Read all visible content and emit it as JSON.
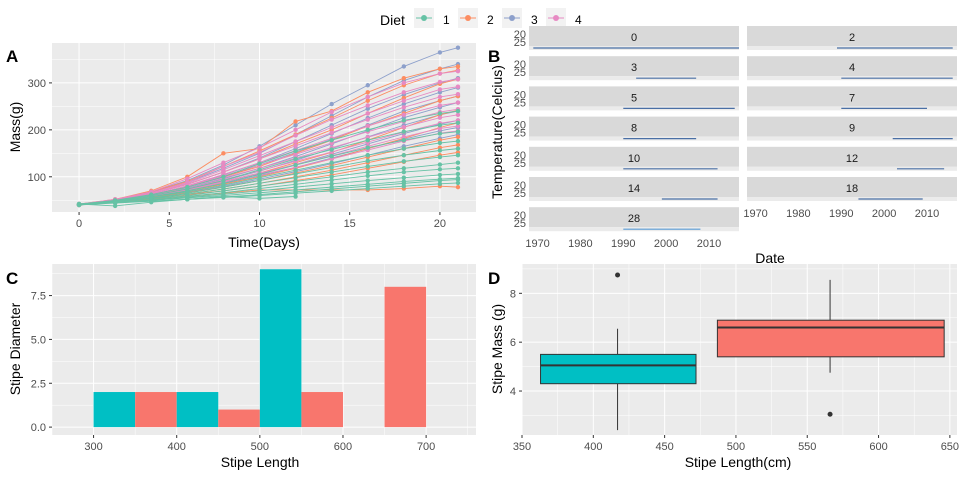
{
  "legend": {
    "title": "Diet",
    "items": [
      {
        "label": "1",
        "color": "#66C2A5"
      },
      {
        "label": "2",
        "color": "#FC8D62"
      },
      {
        "label": "3",
        "color": "#8DA0CB"
      },
      {
        "label": "4",
        "color": "#E78AC3"
      }
    ]
  },
  "colors": {
    "panel_bg": "#EBEBEB",
    "grid": "#FFFFFF",
    "strip_bg": "#D9D9D9",
    "teal": "#00BFC4",
    "salmon": "#F8766D",
    "facet_line": "#4A6FA5"
  },
  "chart_data": [
    {
      "panel": "A",
      "type": "line",
      "xlabel": "Time(Days)",
      "ylabel": "Mass(g)",
      "xlim": [
        -1.5,
        22
      ],
      "ylim": [
        25,
        385
      ],
      "xticks": [
        0,
        5,
        10,
        15,
        20
      ],
      "yticks": [
        100,
        200,
        300
      ],
      "x": [
        0,
        2,
        4,
        6,
        8,
        10,
        12,
        14,
        16,
        18,
        20,
        21
      ],
      "series": [
        {
          "diet": "3",
          "values": [
            40,
            50,
            68,
            92,
            125,
            165,
            210,
            255,
            295,
            335,
            365,
            375
          ]
        },
        {
          "diet": "3",
          "values": [
            41,
            51,
            67,
            88,
            118,
            150,
            190,
            230,
            270,
            305,
            330,
            340
          ]
        },
        {
          "diet": "3",
          "values": [
            42,
            50,
            64,
            84,
            110,
            140,
            175,
            210,
            245,
            275,
            300,
            310
          ]
        },
        {
          "diet": "3",
          "values": [
            40,
            48,
            62,
            80,
            104,
            130,
            160,
            192,
            225,
            255,
            280,
            290
          ]
        },
        {
          "diet": "3",
          "values": [
            41,
            49,
            62,
            78,
            100,
            125,
            152,
            180,
            210,
            240,
            262,
            272
          ]
        },
        {
          "diet": "3",
          "values": [
            42,
            50,
            61,
            76,
            96,
            118,
            143,
            170,
            198,
            226,
            248,
            258
          ]
        },
        {
          "diet": "3",
          "values": [
            40,
            48,
            60,
            74,
            92,
            112,
            135,
            160,
            185,
            210,
            232,
            240
          ]
        },
        {
          "diet": "3",
          "values": [
            41,
            49,
            59,
            72,
            88,
            106,
            126,
            148,
            170,
            192,
            212,
            220
          ]
        },
        {
          "diet": "3",
          "values": [
            42,
            49,
            58,
            70,
            85,
            102,
            120,
            140,
            160,
            180,
            198,
            205
          ]
        },
        {
          "diet": "3",
          "values": [
            40,
            47,
            56,
            67,
            80,
            95,
            111,
            128,
            146,
            165,
            182,
            190
          ]
        },
        {
          "diet": "2",
          "values": [
            42,
            52,
            70,
            100,
            150,
            160,
            218,
            240,
            280,
            310,
            330,
            335
          ]
        },
        {
          "diet": "2",
          "values": [
            41,
            51,
            68,
            90,
            122,
            155,
            190,
            225,
            262,
            295,
            320,
            327
          ]
        },
        {
          "diet": "2",
          "values": [
            41,
            50,
            64,
            84,
            110,
            138,
            170,
            200,
            235,
            268,
            298,
            308
          ]
        },
        {
          "diet": "2",
          "values": [
            40,
            49,
            60,
            78,
            100,
            122,
            150,
            178,
            208,
            235,
            262,
            272
          ]
        },
        {
          "diet": "2",
          "values": [
            42,
            50,
            60,
            74,
            90,
            108,
            130,
            152,
            178,
            205,
            232,
            242
          ]
        },
        {
          "diet": "2",
          "values": [
            40,
            48,
            57,
            70,
            84,
            100,
            118,
            138,
            160,
            182,
            205,
            215
          ]
        },
        {
          "diet": "2",
          "values": [
            41,
            48,
            56,
            66,
            78,
            92,
            108,
            124,
            142,
            160,
            178,
            185
          ]
        },
        {
          "diet": "2",
          "values": [
            40,
            47,
            54,
            63,
            74,
            86,
            100,
            114,
            130,
            146,
            162,
            168
          ]
        },
        {
          "diet": "2",
          "values": [
            42,
            48,
            55,
            62,
            70,
            80,
            92,
            104,
            118,
            132,
            146,
            152
          ]
        },
        {
          "diet": "2",
          "values": [
            41,
            46,
            52,
            58,
            65,
            72,
            72,
            72,
            72,
            75,
            80,
            78
          ]
        },
        {
          "diet": "4",
          "values": [
            42,
            52,
            68,
            96,
            130,
            162,
            200,
            238,
            270,
            300,
            320,
            325
          ]
        },
        {
          "diet": "4",
          "values": [
            41,
            51,
            66,
            88,
            122,
            152,
            188,
            222,
            252,
            280,
            302,
            308
          ]
        },
        {
          "diet": "4",
          "values": [
            40,
            50,
            64,
            86,
            115,
            145,
            175,
            205,
            235,
            262,
            286,
            292
          ]
        },
        {
          "diet": "4",
          "values": [
            42,
            50,
            63,
            84,
            110,
            138,
            166,
            194,
            222,
            248,
            270,
            276
          ]
        },
        {
          "diet": "4",
          "values": [
            40,
            49,
            61,
            81,
            105,
            130,
            156,
            182,
            208,
            232,
            252,
            258
          ]
        },
        {
          "diet": "4",
          "values": [
            41,
            49,
            61,
            80,
            102,
            125,
            148,
            172,
            196,
            218,
            238,
            244
          ]
        },
        {
          "diet": "4",
          "values": [
            42,
            50,
            60,
            78,
            98,
            118,
            140,
            162,
            184,
            206,
            226,
            232
          ]
        },
        {
          "diet": "4",
          "values": [
            40,
            48,
            59,
            75,
            94,
            113,
            133,
            153,
            174,
            195,
            214,
            220
          ]
        },
        {
          "diet": "4",
          "values": [
            41,
            48,
            58,
            73,
            90,
            108,
            126,
            145,
            165,
            185,
            203,
            208
          ]
        },
        {
          "diet": "4",
          "values": [
            42,
            49,
            58,
            72,
            88,
            104,
            120,
            138,
            157,
            176,
            193,
            198
          ]
        },
        {
          "diet": "1",
          "values": [
            42,
            50,
            62,
            78,
            100,
            128,
            155,
            178,
            200,
            220,
            235,
            240
          ]
        },
        {
          "diet": "1",
          "values": [
            41,
            49,
            60,
            74,
            92,
            115,
            138,
            158,
            178,
            196,
            210,
            215
          ]
        },
        {
          "diet": "1",
          "values": [
            40,
            48,
            58,
            70,
            86,
            105,
            125,
            144,
            162,
            178,
            192,
            196
          ]
        },
        {
          "diet": "1",
          "values": [
            42,
            48,
            57,
            68,
            82,
            98,
            114,
            130,
            146,
            160,
            172,
            176
          ]
        },
        {
          "diet": "1",
          "values": [
            40,
            47,
            55,
            65,
            78,
            92,
            106,
            120,
            134,
            146,
            156,
            160
          ]
        },
        {
          "diet": "1",
          "values": [
            41,
            47,
            54,
            63,
            74,
            86,
            98,
            110,
            122,
            133,
            142,
            146
          ]
        },
        {
          "diet": "1",
          "values": [
            42,
            47,
            53,
            60,
            70,
            80,
            90,
            100,
            110,
            118,
            126,
            130
          ]
        },
        {
          "diet": "1",
          "values": [
            40,
            45,
            51,
            58,
            66,
            75,
            84,
            93,
            102,
            110,
            116,
            118
          ]
        },
        {
          "diet": "1",
          "values": [
            41,
            45,
            50,
            56,
            63,
            70,
            78,
            85,
            92,
            98,
            104,
            106
          ]
        },
        {
          "diet": "1",
          "values": [
            42,
            46,
            50,
            55,
            60,
            66,
            72,
            78,
            84,
            90,
            95,
            97
          ]
        },
        {
          "diet": "1",
          "values": [
            40,
            44,
            48,
            52,
            57,
            62,
            68,
            74,
            80,
            86,
            92,
            94
          ]
        },
        {
          "diet": "1",
          "values": [
            41,
            45,
            48,
            52,
            56,
            60,
            65,
            70,
            75,
            80,
            85,
            87
          ]
        },
        {
          "diet": "1",
          "values": [
            42,
            38,
            46,
            52,
            58,
            54,
            58,
            null,
            null,
            null,
            null,
            null
          ]
        }
      ]
    },
    {
      "panel": "B",
      "type": "line",
      "xlabel": "Date",
      "ylabel": "Temperature(Celcius)",
      "xlim": [
        1968,
        2017
      ],
      "xticks": [
        1970,
        1980,
        1990,
        2000,
        2010
      ],
      "ytick_labels": [
        "20",
        "25"
      ],
      "facets": [
        {
          "label": "0",
          "x0": 1969,
          "x1": 2017
        },
        {
          "label": "2",
          "x0": 1989,
          "x1": 2016
        },
        {
          "label": "3",
          "x0": 1993,
          "x1": 2007
        },
        {
          "label": "4",
          "x0": 1990,
          "x1": 2016
        },
        {
          "label": "5",
          "x0": 1990,
          "x1": 2016
        },
        {
          "label": "7",
          "x0": 1990,
          "x1": 2010
        },
        {
          "label": "8",
          "x0": 1990,
          "x1": 2007
        },
        {
          "label": "9",
          "x0": 2002,
          "x1": 2016
        },
        {
          "label": "10",
          "x0": 1990,
          "x1": 2012
        },
        {
          "label": "12",
          "x0": 2003,
          "x1": 2014
        },
        {
          "label": "14",
          "x0": 1999,
          "x1": 2012
        },
        {
          "label": "18",
          "x0": 1994,
          "x1": 2009
        },
        {
          "label": "28",
          "x0": 1990,
          "x1": 2008
        }
      ]
    },
    {
      "panel": "C",
      "type": "bar",
      "xlabel": "Stipe Length",
      "ylabel": "Stipe Diameter",
      "xlim": [
        250,
        760
      ],
      "ylim": [
        -0.45,
        9.3
      ],
      "xticks": [
        300,
        400,
        500,
        600,
        700
      ],
      "yticks": [
        0.0,
        2.5,
        5.0,
        7.5
      ],
      "ytick_labels": [
        "0.0",
        "2.5",
        "5.0",
        "7.5"
      ],
      "bars": [
        {
          "x0": 300,
          "x1": 350,
          "value": 2,
          "group": "teal"
        },
        {
          "x0": 350,
          "x1": 400,
          "value": 2,
          "group": "salmon"
        },
        {
          "x0": 400,
          "x1": 450,
          "value": 2,
          "group": "teal"
        },
        {
          "x0": 450,
          "x1": 500,
          "value": 1,
          "group": "salmon"
        },
        {
          "x0": 500,
          "x1": 550,
          "value": 9,
          "group": "teal"
        },
        {
          "x0": 550,
          "x1": 600,
          "value": 2,
          "group": "salmon"
        },
        {
          "x0": 650,
          "x1": 700,
          "value": 8,
          "group": "salmon"
        }
      ]
    },
    {
      "panel": "D",
      "type": "box",
      "xlabel": "Stipe Length(cm)",
      "ylabel": "Stipe Mass (g)",
      "xlim": [
        350,
        655
      ],
      "ylim": [
        2.2,
        9.2
      ],
      "xticks": [
        350,
        400,
        450,
        500,
        550,
        600,
        650
      ],
      "yticks": [
        4,
        6,
        8
      ],
      "boxes": [
        {
          "group": "teal",
          "x0": 363,
          "x1": 472,
          "xc": 417,
          "min": 2.4,
          "q1": 4.3,
          "median": 5.05,
          "q3": 5.5,
          "max": 6.55,
          "outliers": [
            8.75
          ]
        },
        {
          "group": "salmon",
          "x0": 487,
          "x1": 646,
          "xc": 566,
          "min": 4.75,
          "q1": 5.4,
          "median": 6.6,
          "q3": 6.9,
          "max": 8.55,
          "outliers": [
            3.05
          ]
        }
      ]
    }
  ]
}
